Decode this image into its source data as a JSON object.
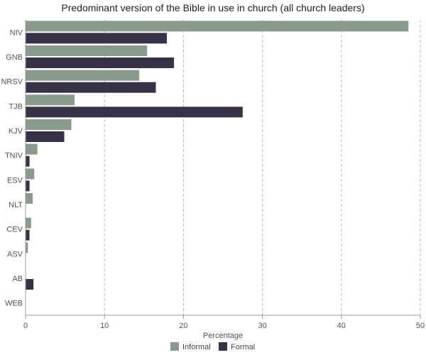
{
  "chart_data": {
    "type": "bar",
    "orientation": "horizontal",
    "title": "Predominant version of the Bible in use in church (all church leaders)",
    "xlabel": "Percentage",
    "ylabel": "",
    "xlim": [
      0,
      50
    ],
    "x_ticks": [
      "0",
      "10",
      "20",
      "30",
      "40",
      "50"
    ],
    "grid": "vertical dashed",
    "legend_position": "bottom",
    "categories": [
      "NIV",
      "GNB",
      "NRSV",
      "TJB",
      "KJV",
      "TNIV",
      "ESV",
      "NLT",
      "CEV",
      "ASV",
      "AB",
      "WEB"
    ],
    "series": [
      {
        "name": "Informal",
        "color": "#8a9a8c",
        "values": [
          48.5,
          15.4,
          14.4,
          6.2,
          5.8,
          1.5,
          1.1,
          0.9,
          0.7,
          0.3,
          0,
          0
        ]
      },
      {
        "name": "Formal",
        "color": "#3b3147",
        "values": [
          17.9,
          18.8,
          16.5,
          27.5,
          4.9,
          0.5,
          0.5,
          0,
          0.5,
          0,
          1.0,
          0
        ]
      }
    ]
  }
}
